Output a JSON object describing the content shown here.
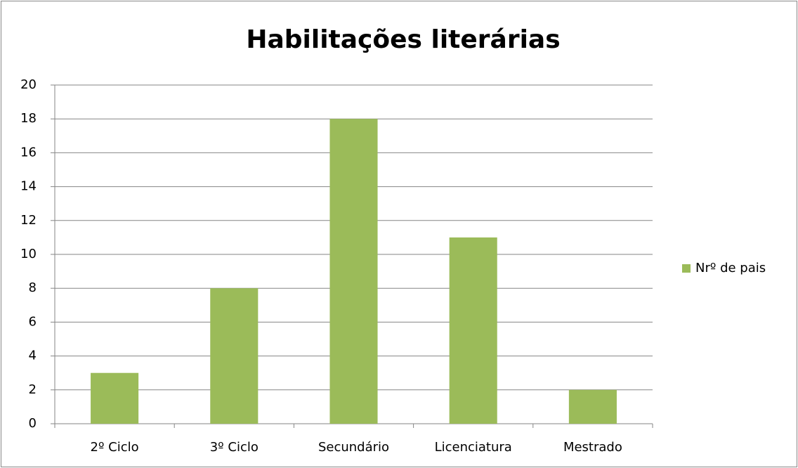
{
  "chart_data": {
    "type": "bar",
    "title": "Habilitações literárias",
    "categories": [
      "2º Ciclo",
      "3º Ciclo",
      "Secundário",
      "Licenciatura",
      "Mestrado"
    ],
    "series": [
      {
        "name": "Nrº de pais",
        "color": "#9bbb59",
        "values": [
          3,
          8,
          18,
          11,
          2
        ]
      }
    ],
    "ylim": [
      0,
      20
    ],
    "yticks": [
      0,
      2,
      4,
      6,
      8,
      10,
      12,
      14,
      16,
      18,
      20
    ],
    "grid": true,
    "legend": "right"
  }
}
